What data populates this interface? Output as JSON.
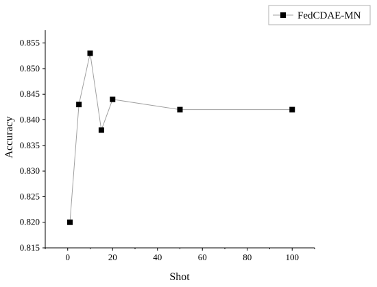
{
  "chart_data": {
    "type": "line",
    "title": "",
    "xlabel": "Shot",
    "ylabel": "Accuracy",
    "xlim": [
      -10,
      110
    ],
    "ylim": [
      0.815,
      0.8575
    ],
    "xticks": [
      0,
      20,
      40,
      60,
      80,
      100
    ],
    "xtick_labels": [
      "0",
      "20",
      "40",
      "60",
      "80",
      "100"
    ],
    "yticks": [
      0.815,
      0.82,
      0.825,
      0.83,
      0.835,
      0.84,
      0.845,
      0.85,
      0.855
    ],
    "ytick_labels": [
      "0.815",
      "0.820",
      "0.825",
      "0.830",
      "0.835",
      "0.840",
      "0.845",
      "0.850",
      "0.855"
    ],
    "grid": false,
    "legend_position": "top-right",
    "series": [
      {
        "name": "FedCDAE-MN",
        "marker": "square",
        "line_color": "#a0a0a0",
        "marker_color": "#000000",
        "x": [
          1,
          5,
          10,
          15,
          20,
          50,
          100
        ],
        "y": [
          0.82,
          0.843,
          0.853,
          0.838,
          0.844,
          0.842,
          0.842
        ]
      }
    ]
  }
}
